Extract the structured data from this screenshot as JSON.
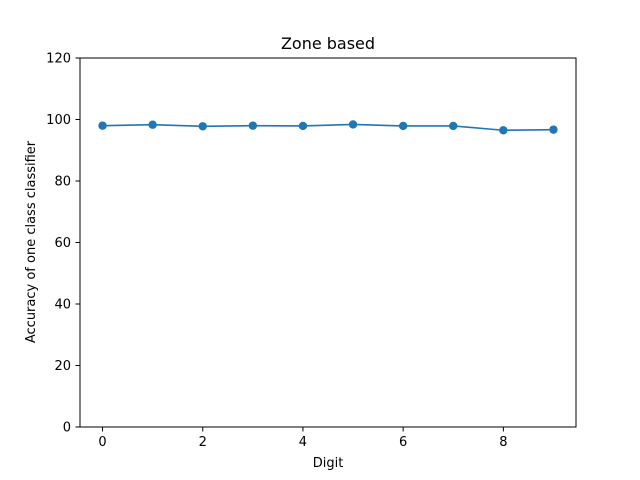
{
  "chart_data": {
    "type": "line",
    "title": "Zone based",
    "xlabel": "Digit",
    "ylabel": "Accuracy of one class classifier",
    "x": [
      0,
      1,
      2,
      3,
      4,
      5,
      6,
      7,
      8,
      9
    ],
    "series": [
      {
        "values": [
          98.0,
          98.3,
          97.8,
          98.0,
          97.9,
          98.4,
          97.9,
          97.9,
          96.5,
          96.7
        ],
        "color": "#1f77b4",
        "marker": "circle"
      }
    ],
    "xlim": [
      -0.45,
      9.45
    ],
    "ylim": [
      0,
      120
    ],
    "xticks": [
      0,
      2,
      4,
      6,
      8
    ],
    "yticks": [
      0,
      20,
      40,
      60,
      80,
      100,
      120
    ],
    "grid": false,
    "legend": "none"
  }
}
